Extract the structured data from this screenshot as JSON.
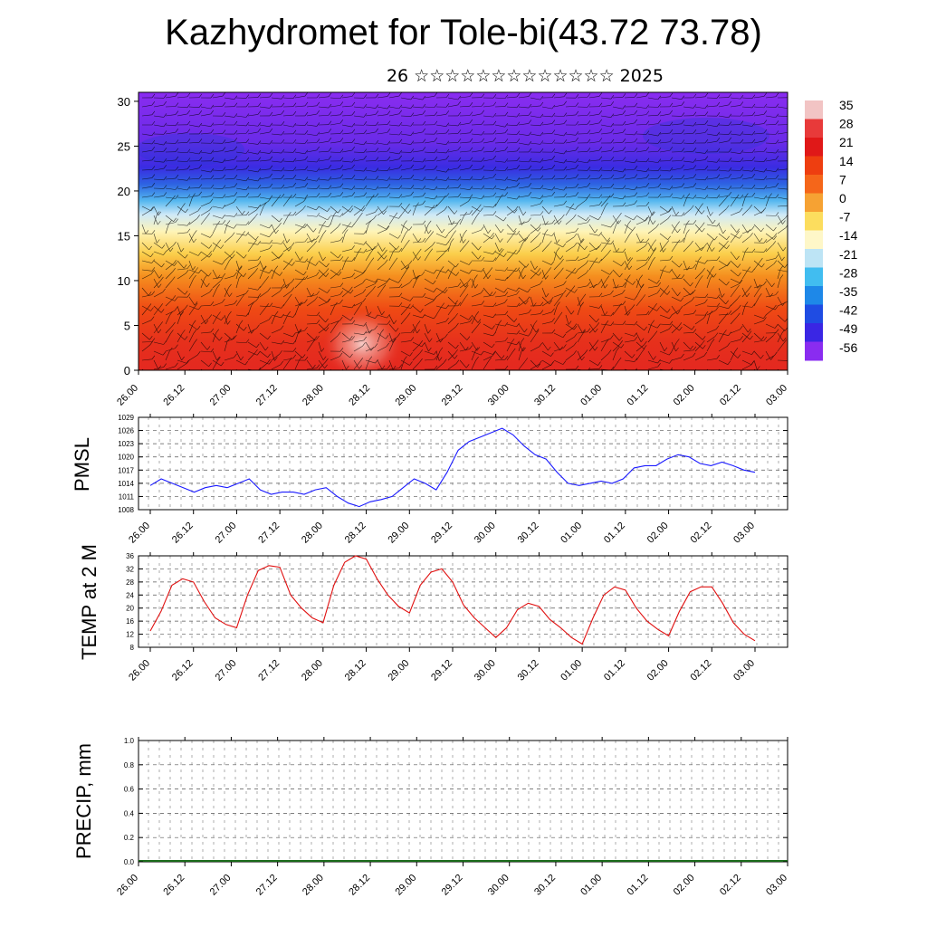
{
  "title": "Kazhydromet for Tole-bi(43.72 73.78)",
  "subtitle": "26 ☆☆☆☆☆☆☆☆☆☆☆☆☆ 2025",
  "time_labels": [
    "26.00",
    "26.12",
    "27.00",
    "27.12",
    "28.00",
    "28.12",
    "29.00",
    "29.12",
    "30.00",
    "30.12",
    "01.00",
    "01.12",
    "02.00",
    "02.12",
    "03.00"
  ],
  "chart_data": [
    {
      "type": "heatmap",
      "y_ticks": [
        0,
        5,
        10,
        15,
        20,
        25,
        30
      ],
      "ylim": [
        0,
        31
      ],
      "colorbar": {
        "labels": [
          "35",
          "28",
          "21",
          "14",
          "7",
          "0",
          "-7",
          "-14",
          "-21",
          "-28",
          "-35",
          "-42",
          "-49",
          "-56"
        ],
        "colors": [
          "#f2c4c4",
          "#e83a3a",
          "#e01818",
          "#ee3e10",
          "#f5661a",
          "#f6a233",
          "#fcdd5e",
          "#fef7c8",
          "#bde4f5",
          "#41bdf0",
          "#1e88e8",
          "#1f4ce3",
          "#3a26e4",
          "#8a2cf0"
        ]
      },
      "wind_barbs": true
    },
    {
      "type": "line",
      "ylabel": "PMSL",
      "y_ticks": [
        1008,
        1011,
        1014,
        1017,
        1020,
        1023,
        1026,
        1029
      ],
      "ylim": [
        1008,
        1029
      ],
      "series": [
        {
          "color": "#1a1aff",
          "values": [
            1013.5,
            1015,
            1014,
            1013,
            1012,
            1013,
            1013.5,
            1013,
            1014,
            1015,
            1012.5,
            1011.5,
            1012,
            1012,
            1011.5,
            1012.5,
            1013,
            1011,
            1009.5,
            1008.7,
            1009.8,
            1010.3,
            1011,
            1013,
            1015,
            1014,
            1012.5,
            1016.5,
            1021.5,
            1023.5,
            1024.5,
            1025.5,
            1026.5,
            1025,
            1022.5,
            1020.5,
            1019.5,
            1016.5,
            1014,
            1013.5,
            1014,
            1014.5,
            1014,
            1015,
            1017.5,
            1018,
            1018,
            1019.5,
            1020.5,
            1020,
            1018.5,
            1018,
            1018.8,
            1018,
            1017,
            1016.5
          ]
        }
      ]
    },
    {
      "type": "line",
      "ylabel": "TEMP at 2 M",
      "y_ticks": [
        8,
        12,
        16,
        20,
        24,
        28,
        32,
        36
      ],
      "ylim": [
        8,
        36
      ],
      "series": [
        {
          "color": "#e01010",
          "values": [
            13,
            19,
            27,
            29,
            28,
            22,
            17,
            15,
            14,
            24,
            31.5,
            33,
            32.5,
            24,
            20,
            17,
            15.5,
            27,
            34,
            36,
            35,
            29,
            24,
            20.5,
            18.5,
            27,
            31,
            32,
            28,
            21,
            17,
            14,
            11,
            14,
            19.5,
            21.5,
            20.5,
            16.5,
            14,
            11,
            9,
            17,
            24,
            26.5,
            25.5,
            20,
            16,
            13.5,
            11.5,
            19,
            25,
            26.5,
            26.5,
            21.5,
            15.5,
            12,
            10
          ]
        }
      ]
    },
    {
      "type": "bar",
      "ylabel": "PRECIP, mm",
      "y_ticks": [
        0.0,
        0.2,
        0.4,
        0.6,
        0.8,
        1.0
      ],
      "ylim": [
        0,
        1
      ],
      "values": []
    }
  ]
}
